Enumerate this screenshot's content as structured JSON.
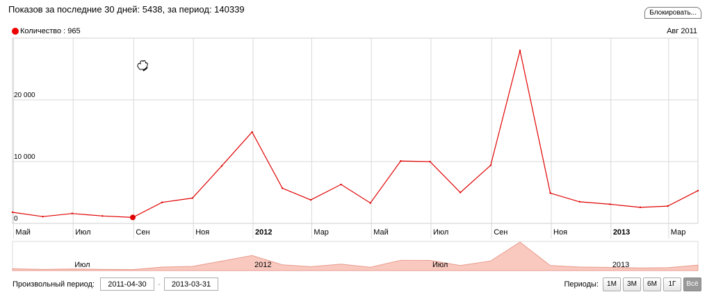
{
  "summary": "Показов за последние 30 дней: 5438, за период: 140339",
  "block_button": "Блокировать...",
  "legend": {
    "label": "Количество : 965",
    "color": "#e00000"
  },
  "hover_date": "Авг 2011",
  "chart_data": {
    "type": "line",
    "x": [
      "2011-04-30",
      "2011-05-31",
      "2011-06-30",
      "2011-07-31",
      "2011-08-31",
      "2011-09-30",
      "2011-10-31",
      "2011-11-30",
      "2011-12-31",
      "2012-01-31",
      "2012-02-29",
      "2012-03-31",
      "2012-04-30",
      "2012-05-31",
      "2012-06-30",
      "2012-07-31",
      "2012-08-31",
      "2012-09-30",
      "2012-10-31",
      "2012-11-30",
      "2012-12-31",
      "2013-01-31",
      "2013-02-28",
      "2013-03-31"
    ],
    "series": [
      {
        "name": "Количество",
        "values": [
          1800,
          1100,
          1600,
          1200,
          965,
          3400,
          4100,
          9300,
          14800,
          5700,
          3800,
          6300,
          3300,
          10100,
          10000,
          5000,
          9400,
          28000,
          4900,
          3500,
          3100,
          2600,
          2800,
          5300
        ]
      }
    ],
    "y_ticks": [
      0,
      10000,
      20000
    ],
    "y_tick_labels": [
      "0",
      "10 000",
      "20 000"
    ],
    "ylim": [
      0,
      30000
    ],
    "x_tick_labels": [
      "Май",
      "Июл",
      "Сен",
      "Ноя",
      "2012",
      "Мар",
      "Май",
      "Июл",
      "Сен",
      "Ноя",
      "2013",
      "Мар"
    ],
    "x_tick_dates": [
      "2011-05-01",
      "2011-07-01",
      "2011-09-01",
      "2011-11-01",
      "2012-01-01",
      "2012-03-01",
      "2012-05-01",
      "2012-07-01",
      "2012-09-01",
      "2012-11-01",
      "2013-01-01",
      "2013-03-01"
    ],
    "x_tick_bold": [
      false,
      false,
      false,
      false,
      true,
      false,
      false,
      false,
      false,
      false,
      true,
      false
    ],
    "navigator_labels": [
      "Июл",
      "2012",
      "Июл",
      "2013"
    ],
    "navigator_label_dates": [
      "2011-07-01",
      "2012-01-01",
      "2012-07-01",
      "2013-01-01"
    ],
    "highlight_point": {
      "date": "2011-08-31",
      "value": 965
    },
    "line_color": "#e00000",
    "navigator_fill": "#f9c9bf",
    "grid": true
  },
  "footer": {
    "period_label": "Произвольный период:",
    "start_date": "2011-04-30",
    "end_date": "2013-03-31",
    "periods_label": "Периоды:",
    "periods": [
      "1М",
      "3М",
      "6М",
      "1Г",
      "Всё"
    ],
    "active_period": "Всё"
  }
}
